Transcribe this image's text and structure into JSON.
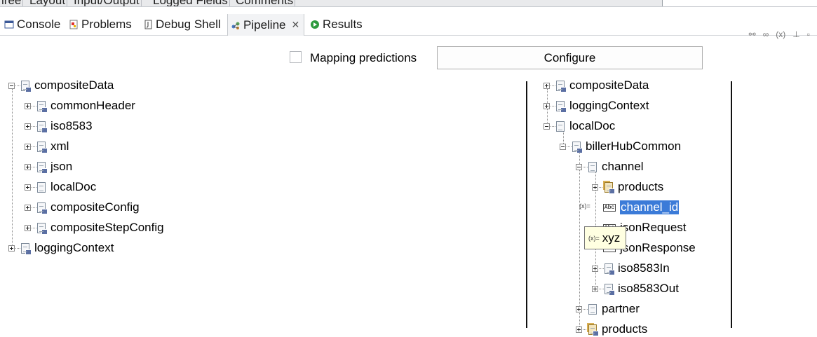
{
  "top_tabs": [
    "iree",
    "Layout",
    "Input/Output",
    "Logged Fields",
    "Comments"
  ],
  "tabs": [
    {
      "label": "Console",
      "icon": "console-icon"
    },
    {
      "label": "Problems",
      "icon": "problems-icon"
    },
    {
      "label": "Debug Shell",
      "icon": "debug-shell-icon"
    },
    {
      "label": "Pipeline",
      "icon": "pipeline-icon",
      "active": true
    },
    {
      "label": "Results",
      "icon": "results-icon"
    }
  ],
  "mapping_predictions_label": "Mapping predictions",
  "configure_label": "Configure",
  "left_tree": [
    {
      "label": "compositeData"
    },
    {
      "label": "commonHeader"
    },
    {
      "label": "iso8583"
    },
    {
      "label": "xml"
    },
    {
      "label": "json"
    },
    {
      "label": "localDoc"
    },
    {
      "label": "compositeConfig"
    },
    {
      "label": "compositeStepConfig"
    },
    {
      "label": "loggingContext"
    }
  ],
  "right_tree": [
    {
      "label": "compositeData"
    },
    {
      "label": "loggingContext"
    },
    {
      "label": "localDoc"
    },
    {
      "label": "billerHubCommon"
    },
    {
      "label": "channel"
    },
    {
      "label": "products"
    },
    {
      "label": "channel_id"
    },
    {
      "label": "jsonRequest"
    },
    {
      "label": "jsonResponse"
    },
    {
      "label": "iso8583In"
    },
    {
      "label": "iso8583Out"
    },
    {
      "label": "partner"
    },
    {
      "label": "products"
    }
  ],
  "tooltip_text": "xyz",
  "colors": {
    "selection": "#3b7bd8",
    "tooltip_bg": "#ffffe1",
    "active_tab": "#f2f3f5"
  }
}
